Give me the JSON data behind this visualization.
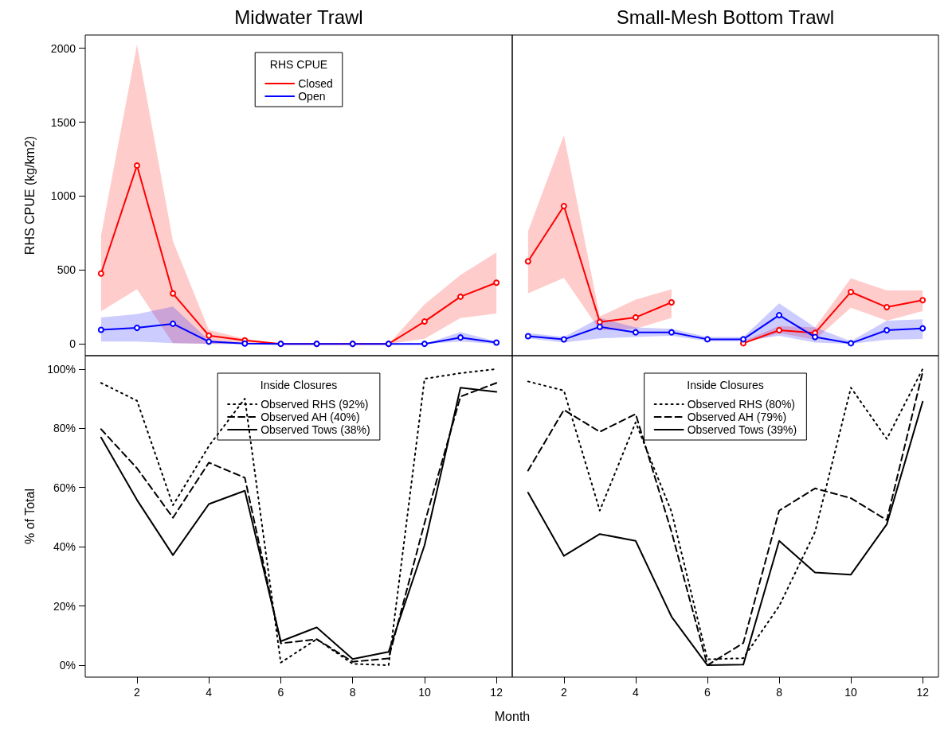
{
  "chart_data": [
    {
      "type": "line",
      "title": "Midwater Trawl",
      "ylabel": "RHS CPUE (kg/km2)",
      "x": [
        1,
        2,
        3,
        4,
        5,
        6,
        7,
        8,
        9,
        10,
        11,
        12
      ],
      "xlim": [
        0.56,
        12.44
      ],
      "xticks": [
        2,
        4,
        6,
        8,
        10,
        12
      ],
      "ylim": [
        -80,
        2090
      ],
      "yticks": [
        0,
        500,
        1000,
        1500,
        2000
      ],
      "legend": "top center",
      "legend_title": "RHS CPUE",
      "marker": "circle",
      "tick_labels": "y",
      "series": [
        {
          "name": "Closed",
          "color": "#ff0000",
          "values": [
            476,
            1207,
            341,
            56,
            24,
            0,
            0,
            0,
            0,
            151,
            319,
            414
          ],
          "lower": [
            220,
            369,
            5,
            0,
            0,
            0,
            0,
            0,
            0,
            34,
            174,
            205
          ],
          "upper": [
            733,
            2026,
            696,
            93,
            34,
            0,
            0,
            0,
            0,
            267,
            466,
            618
          ]
        },
        {
          "name": "Open",
          "color": "#0000ff",
          "values": [
            95,
            108,
            136,
            15,
            2,
            0,
            0,
            0,
            0,
            0,
            43,
            9
          ],
          "lower": [
            15,
            15,
            5,
            0,
            0,
            0,
            0,
            0,
            0,
            0,
            15,
            0
          ],
          "upper": [
            179,
            202,
            252,
            24,
            5,
            0,
            0,
            0,
            0,
            0,
            80,
            15
          ]
        }
      ]
    },
    {
      "type": "line",
      "title": "Small-Mesh Bottom Trawl",
      "x": [
        1,
        2,
        3,
        4,
        5,
        6,
        7,
        8,
        9,
        10,
        11,
        12
      ],
      "xlim": [
        0.56,
        12.44
      ],
      "xticks": [
        2,
        4,
        6,
        8,
        10,
        12
      ],
      "ylim": [
        -80,
        2090
      ],
      "marker": "circle",
      "tick_labels": false,
      "series": [
        {
          "color": "#ff0000",
          "values": [
            558,
            932,
            148,
            179,
            281,
            null,
            4,
            92,
            74,
            351,
            248,
            296
          ],
          "lower": [
            342,
            447,
            92,
            102,
            176,
            null,
            0,
            74,
            28,
            244,
            157,
            222
          ],
          "upper": [
            762,
            1411,
            185,
            300,
            370,
            null,
            18,
            120,
            111,
            444,
            361,
            361
          ]
        },
        {
          "color": "#0000ff",
          "values": [
            52,
            30,
            115,
            78,
            78,
            31,
            31,
            194,
            46,
            4,
            92,
            105
          ],
          "lower": [
            37,
            9,
            37,
            46,
            55,
            18,
            18,
            55,
            9,
            0,
            28,
            33
          ],
          "upper": [
            74,
            46,
            176,
            111,
            102,
            46,
            46,
            274,
            111,
            18,
            157,
            166
          ]
        }
      ]
    },
    {
      "type": "line",
      "ylabel": "% of Total",
      "xlabel": "Month",
      "x": [
        1,
        2,
        3,
        4,
        5,
        6,
        7,
        8,
        9,
        10,
        11,
        12
      ],
      "xlim": [
        0.56,
        12.44
      ],
      "xticks": [
        2,
        4,
        6,
        8,
        10,
        12
      ],
      "ylim": [
        -4,
        104.5
      ],
      "yticks": [
        {
          "value": 0,
          "label": "0%"
        },
        {
          "value": 20,
          "label": "20%"
        },
        {
          "value": 40,
          "label": "40%"
        },
        {
          "value": 60,
          "label": "60%"
        },
        {
          "value": 80,
          "label": "80%"
        },
        {
          "value": 100,
          "label": "100%"
        }
      ],
      "legend": "top center",
      "legend_title": "Inside Closures",
      "series": [
        {
          "name": "Observed RHS (92%)",
          "color": "#000000",
          "line_style": "dotted",
          "values": [
            95.3,
            89.3,
            54,
            74,
            90,
            0.9,
            8.8,
            0.5,
            0,
            96.7,
            98.6,
            100
          ]
        },
        {
          "name": "Observed AH (40%)",
          "color": "#000000",
          "line_style": "dashed",
          "values": [
            79.7,
            66.5,
            49.8,
            68.4,
            63.3,
            7.4,
            8.8,
            1.2,
            2.3,
            48,
            90.7,
            95.3
          ]
        },
        {
          "name": "Observed Tows (38%)",
          "color": "#000000",
          "line_style": "solid",
          "values": [
            76.9,
            55.8,
            37.2,
            54.4,
            58.9,
            8.1,
            12.8,
            2.1,
            4.5,
            40.5,
            93.7,
            92.3
          ]
        }
      ]
    },
    {
      "type": "line",
      "x": [
        1,
        2,
        3,
        4,
        5,
        6,
        7,
        8,
        9,
        10,
        11,
        12
      ],
      "xlim": [
        0.56,
        12.44
      ],
      "xticks": [
        2,
        4,
        6,
        8,
        10,
        12
      ],
      "ylim": [
        -4,
        104.5
      ],
      "legend": "top center",
      "legend_title": "Inside Closures",
      "tick_labels": "x",
      "series": [
        {
          "name": "Observed RHS (80%)",
          "color": "#000000",
          "line_style": "dotted",
          "values": [
            95.8,
            92.7,
            52.2,
            82,
            51.8,
            2,
            2.4,
            20,
            45,
            93.7,
            76.4,
            100
          ]
        },
        {
          "name": "Observed AH (79%)",
          "color": "#000000",
          "line_style": "dashed",
          "values": [
            65.7,
            86.2,
            78.8,
            84.8,
            45,
            0,
            7.5,
            52.2,
            59.7,
            56.4,
            49,
            99
          ]
        },
        {
          "name": "Observed Tows (39%)",
          "color": "#000000",
          "line_style": "solid",
          "values": [
            58.3,
            36.9,
            44.3,
            42,
            16.4,
            0,
            0.2,
            42,
            31.3,
            30.6,
            47.6,
            89
          ]
        }
      ]
    }
  ]
}
